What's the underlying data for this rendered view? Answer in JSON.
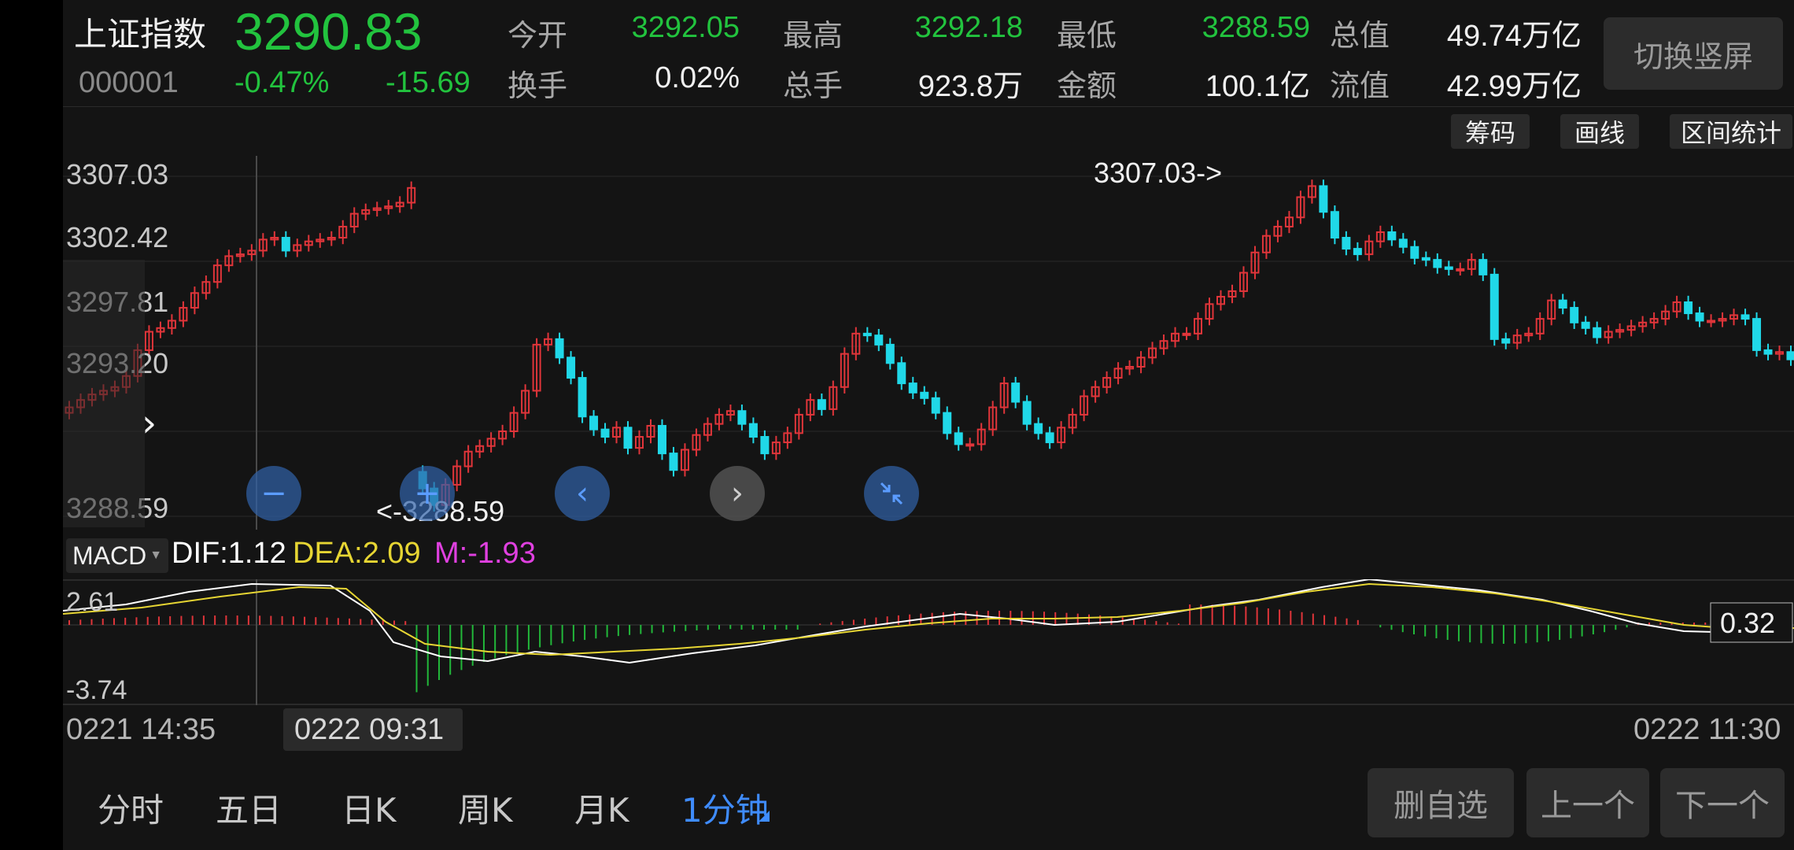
{
  "header": {
    "name": "上证指数",
    "price": "3290.83",
    "code": "000001",
    "change_pct": "-0.47%",
    "change_abs": "-15.69",
    "stats": [
      {
        "label": "今开",
        "value": "3292.05",
        "tone": "green"
      },
      {
        "label": "最高",
        "value": "3292.18",
        "tone": "green"
      },
      {
        "label": "最低",
        "value": "3288.59",
        "tone": "green"
      },
      {
        "label": "总值",
        "value": "49.74万亿",
        "tone": "white"
      },
      {
        "label": "换手",
        "value": "0.02%",
        "tone": "white"
      },
      {
        "label": "总手",
        "value": "923.8万",
        "tone": "white"
      },
      {
        "label": "金额",
        "value": "100.1亿",
        "tone": "white"
      },
      {
        "label": "流值",
        "value": "42.99万亿",
        "tone": "white"
      }
    ],
    "switch_label": "切换竖屏"
  },
  "tools": {
    "chips": "筹码",
    "draw": "画线",
    "range_stats": "区间统计"
  },
  "chart": {
    "y_labels": [
      "3307.03",
      "3302.42",
      "3297.81",
      "3293.20",
      "3288.59"
    ],
    "high_marker": "3307.03->",
    "low_marker": "<-3288.59",
    "colors": {
      "up": "#e0353a",
      "down": "#20d8e8",
      "grid": "#2a2a2a",
      "bg": "#141414"
    }
  },
  "chart_data": {
    "type": "candlestick",
    "title": "",
    "xlabel": "",
    "ylabel": "",
    "ylim": [
      3288.59,
      3307.03
    ],
    "y_ticks": [
      3307.03,
      3302.42,
      3297.81,
      3293.2,
      3288.59
    ],
    "x_labels": [
      "0221 14:35",
      "0222 09:31",
      "0222 11:30"
    ],
    "high": 3307.03,
    "low": 3288.59,
    "closes": [
      3294.5,
      3294.9,
      3295.2,
      3295.4,
      3295.6,
      3296.2,
      3297.6,
      3298.6,
      3298.8,
      3299.2,
      3299.9,
      3300.7,
      3301.3,
      3302.2,
      3302.7,
      3302.8,
      3303.0,
      3303.6,
      3303.7,
      3303.0,
      3303.3,
      3303.5,
      3303.6,
      3303.7,
      3304.3,
      3305.0,
      3305.2,
      3305.3,
      3305.4,
      3305.6,
      3306.4,
      3290.1,
      3289.2,
      3290.3,
      3291.3,
      3292.1,
      3292.4,
      3292.8,
      3293.2,
      3294.2,
      3295.4,
      3297.9,
      3298.2,
      3297.2,
      3296.1,
      3294.0,
      3293.3,
      3292.9,
      3293.4,
      3292.3,
      3292.9,
      3293.5,
      3292.0,
      3291.1,
      3292.2,
      3293.0,
      3293.6,
      3294.1,
      3294.3,
      3293.6,
      3292.9,
      3292.0,
      3292.6,
      3293.1,
      3294.1,
      3294.9,
      3294.4,
      3295.6,
      3297.4,
      3298.5,
      3298.4,
      3297.9,
      3296.9,
      3295.8,
      3295.3,
      3295.0,
      3294.2,
      3293.1,
      3292.5,
      3292.5,
      3293.3,
      3294.5,
      3295.8,
      3294.8,
      3293.6,
      3293.1,
      3292.6,
      3293.4,
      3294.1,
      3295.1,
      3295.6,
      3296.1,
      3296.6,
      3296.7,
      3297.2,
      3297.7,
      3298.1,
      3298.5,
      3298.5,
      3299.3,
      3300.1,
      3300.5,
      3300.8,
      3301.8,
      3302.9,
      3303.8,
      3304.3,
      3304.8,
      3305.9,
      3306.5,
      3305.1,
      3303.7,
      3303.1,
      3302.8,
      3303.5,
      3304.0,
      3303.6,
      3303.2,
      3302.6,
      3302.5,
      3302.1,
      3302.0,
      3302.0,
      3302.5,
      3301.7,
      3298.2,
      3298.0,
      3298.4,
      3298.5,
      3299.3,
      3300.3,
      3299.9,
      3299.1,
      3298.8,
      3298.3,
      3298.6,
      3298.7,
      3298.9,
      3299.1,
      3299.3,
      3299.7,
      3300.2,
      3299.6,
      3299.2,
      3299.2,
      3299.3,
      3299.5,
      3299.3,
      3297.6,
      3297.4,
      3297.5,
      3297.1
    ]
  },
  "macd": {
    "button": "MACD",
    "dif": "DIF:1.12",
    "dea": "DEA:2.09",
    "m": "M:-1.93",
    "y_top": "2.61",
    "y_bottom": "-3.74",
    "current": "0.32",
    "colors": {
      "dif": "#ffffff",
      "dea": "#e6d533",
      "m": "#e040e0"
    }
  },
  "time_axis": {
    "left": "0221 14:35",
    "marker": "0222 09:31",
    "right": "0222 11:30"
  },
  "controls": {
    "zoom_out": "−",
    "zoom_in": "+",
    "prev": "‹",
    "next": "›",
    "collapse": "collapse-icon",
    "expand": "›"
  },
  "nav": {
    "tabs": [
      {
        "label": "分时"
      },
      {
        "label": "五日"
      },
      {
        "label": "日K"
      },
      {
        "label": "周K"
      },
      {
        "label": "月K"
      },
      {
        "label": "1分钟"
      }
    ],
    "active_index": 5
  },
  "actions": {
    "remove_watch": "删自选",
    "prev_stock": "上一个",
    "next_stock": "下一个"
  }
}
